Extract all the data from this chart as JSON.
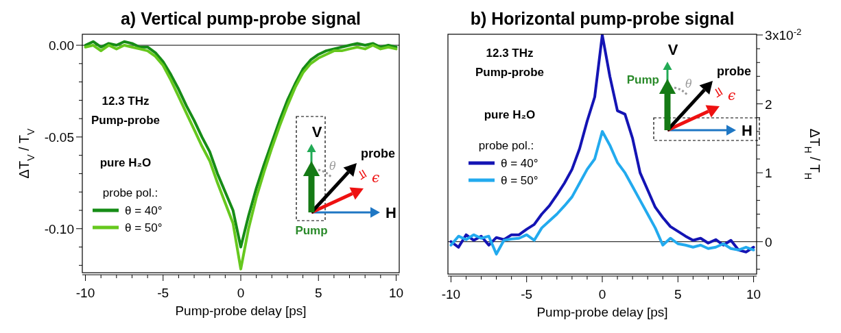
{
  "chart_data": [
    {
      "type": "line",
      "title": "a) Vertical pump-probe signal",
      "xlabel": "Pump-probe delay [ps]",
      "ylabel": "ΔT$_{V}$ / T$_{V}$",
      "xlim": [
        -10.2,
        10.2
      ],
      "ylim": [
        -0.124,
        0.006
      ],
      "xticks": [
        -10,
        {
          "value": -9,
          "label": null
        },
        {
          "value": -8,
          "label": null
        },
        {
          "value": -7,
          "label": null
        },
        {
          "value": -6,
          "label": null
        },
        -5,
        {
          "value": -4,
          "label": null
        },
        {
          "value": -3,
          "label": null
        },
        {
          "value": -2,
          "label": null
        },
        {
          "value": -1,
          "label": null
        },
        0,
        {
          "value": 1,
          "label": null
        },
        {
          "value": 2,
          "label": null
        },
        {
          "value": 3,
          "label": null
        },
        {
          "value": 4,
          "label": null
        },
        5,
        {
          "value": 6,
          "label": null
        },
        {
          "value": 7,
          "label": null
        },
        {
          "value": 8,
          "label": null
        },
        {
          "value": 9,
          "label": null
        },
        10
      ],
      "yticks": [
        {
          "value": -0.12,
          "label": null
        },
        {
          "value": -0.11,
          "label": null
        },
        {
          "value": -0.1,
          "label": "-0.10"
        },
        {
          "value": -0.09,
          "label": null
        },
        {
          "value": -0.08,
          "label": null
        },
        {
          "value": -0.07,
          "label": null
        },
        {
          "value": -0.06,
          "label": null
        },
        -0.05,
        {
          "value": -0.04,
          "label": null
        },
        {
          "value": -0.03,
          "label": null
        },
        {
          "value": -0.02,
          "label": null
        },
        {
          "value": -0.01,
          "label": null
        },
        {
          "value": 0,
          "label": "0.00"
        }
      ],
      "x": [
        -10,
        -9.5,
        -9,
        -8.5,
        -8,
        -7.5,
        -7,
        -6.5,
        -6,
        -5.5,
        -5,
        -4.5,
        -4,
        -3.5,
        -3,
        -2.5,
        -2,
        -1.5,
        -1,
        -0.5,
        0,
        0.5,
        1,
        1.5,
        2,
        2.5,
        3,
        3.5,
        4,
        4.5,
        5,
        5.5,
        6,
        6.5,
        7,
        7.5,
        8,
        8.5,
        9,
        9.5,
        10
      ],
      "series": [
        {
          "name": "θ = 40°",
          "color": "#168c16",
          "values": [
            0,
            0.002,
            -0.001,
            0.001,
            0,
            0.002,
            0.001,
            -0.001,
            -0.001,
            -0.004,
            -0.009,
            -0.016,
            -0.024,
            -0.033,
            -0.041,
            -0.05,
            -0.058,
            -0.07,
            -0.08,
            -0.09,
            -0.11,
            -0.093,
            -0.078,
            -0.065,
            -0.053,
            -0.041,
            -0.03,
            -0.021,
            -0.013,
            -0.008,
            -0.005,
            -0.003,
            -0.002,
            -0.001,
            0,
            0.001,
            0,
            0.001,
            -0.001,
            0,
            -0.001
          ]
        },
        {
          "name": "θ = 50°",
          "color": "#66c81e",
          "values": [
            -0.001,
            0,
            -0.003,
            0,
            -0.002,
            0,
            -0.001,
            -0.002,
            -0.003,
            -0.006,
            -0.011,
            -0.019,
            -0.028,
            -0.037,
            -0.046,
            -0.055,
            -0.063,
            -0.075,
            -0.086,
            -0.097,
            -0.122,
            -0.1,
            -0.083,
            -0.069,
            -0.056,
            -0.044,
            -0.033,
            -0.023,
            -0.015,
            -0.01,
            -0.007,
            -0.005,
            -0.003,
            -0.003,
            -0.002,
            -0.001,
            -0.002,
            0,
            -0.002,
            -0.001,
            -0.002
          ]
        }
      ],
      "legend": "bottom left",
      "legend_title": "probe pol.:",
      "ref_lines": [
        {
          "axis": "y",
          "value": 0,
          "color": "#000000"
        }
      ],
      "annotations": [
        "12.3 THz",
        "Pump-probe",
        "pure H₂O",
        "V",
        "probe",
        "θ",
        "ϵ",
        "H",
        "Pump"
      ]
    },
    {
      "type": "line",
      "title": "b) Horizontal pump-probe signal",
      "xlabel": "Pump-probe delay [ps]",
      "y2label": "ΔT$_{H}$ / T$_{H}$",
      "xlim": [
        -10.2,
        10.2
      ],
      "y2lim": [
        -0.47,
        3.01
      ],
      "xticks": [
        -10,
        {
          "value": -9,
          "label": null
        },
        {
          "value": -8,
          "label": null
        },
        {
          "value": -7,
          "label": null
        },
        {
          "value": -6,
          "label": null
        },
        -5,
        {
          "value": -4,
          "label": null
        },
        {
          "value": -3,
          "label": null
        },
        {
          "value": -2,
          "label": null
        },
        {
          "value": -1,
          "label": null
        },
        0,
        {
          "value": 1,
          "label": null
        },
        {
          "value": 2,
          "label": null
        },
        {
          "value": 3,
          "label": null
        },
        {
          "value": 4,
          "label": null
        },
        5,
        {
          "value": 6,
          "label": null
        },
        {
          "value": 7,
          "label": null
        },
        {
          "value": 8,
          "label": null
        },
        {
          "value": 9,
          "label": null
        },
        10
      ],
      "y2ticks": [
        {
          "value": -0.4,
          "label": null
        },
        {
          "value": -0.2,
          "label": null
        },
        0,
        {
          "value": 0.2,
          "label": null
        },
        {
          "value": 0.4,
          "label": null
        },
        {
          "value": 0.6,
          "label": null
        },
        {
          "value": 0.8,
          "label": null
        },
        1,
        {
          "value": 1.2,
          "label": null
        },
        {
          "value": 1.4,
          "label": null
        },
        {
          "value": 1.6,
          "label": null
        },
        {
          "value": 1.8,
          "label": null
        },
        2,
        {
          "value": 2.2,
          "label": null
        },
        {
          "value": 2.4,
          "label": null
        },
        {
          "value": 2.6,
          "label": null
        },
        {
          "value": 2.8,
          "label": null
        },
        3
      ],
      "x": [
        -10,
        -9.5,
        -9,
        -8.5,
        -8,
        -7.5,
        -7,
        -6.5,
        -6,
        -5.5,
        -5,
        -4.5,
        -4,
        -3.5,
        -3,
        -2.5,
        -2,
        -1.5,
        -1,
        -0.5,
        0,
        0.5,
        1,
        1.5,
        2,
        2.5,
        3,
        3.5,
        4,
        4.5,
        5,
        5.5,
        6,
        6.5,
        7,
        7.5,
        8,
        8.5,
        9,
        9.5,
        10
      ],
      "series": [
        {
          "name": "θ = 40°",
          "color": "#1414b4",
          "axis": "y2",
          "values": [
            0,
            -0.08,
            0.1,
            0.02,
            0.08,
            -0.05,
            0.06,
            0.03,
            0.1,
            0.1,
            0.18,
            0.25,
            0.4,
            0.52,
            0.68,
            0.85,
            1.05,
            1.35,
            1.75,
            2.1,
            3,
            2.4,
            1.9,
            1.85,
            1.5,
            1,
            0.75,
            0.5,
            0.35,
            0.22,
            0.15,
            0.08,
            0.02,
            0.05,
            -0.02,
            0.03,
            -0.05,
            0.02,
            -0.12,
            -0.15,
            -0.08
          ]
        },
        {
          "name": "θ = 50°",
          "color": "#22aaee",
          "axis": "y2",
          "values": [
            -0.05,
            0.08,
            0.03,
            0.1,
            0.05,
            0.08,
            -0.18,
            0.02,
            0.04,
            0.05,
            0.1,
            0.02,
            0.2,
            0.3,
            0.4,
            0.52,
            0.65,
            0.85,
            1.05,
            1.2,
            1.6,
            1.4,
            1.15,
            1,
            0.8,
            0.6,
            0.4,
            0.2,
            -0.05,
            0.05,
            -0.03,
            -0.05,
            -0.08,
            -0.05,
            -0.1,
            -0.08,
            -0.03,
            -0.1,
            -0.12,
            -0.08,
            -0.12
          ]
        }
      ],
      "legend": "left",
      "legend_title": "probe pol.:",
      "ref_lines": [
        {
          "axis": "y2",
          "value": 0,
          "color": "#000000"
        }
      ],
      "annotations": [
        "12.3 THz",
        "Pump-probe",
        "pure H₂O",
        "V",
        "probe",
        "θ",
        "ϵ",
        "H",
        "Pump",
        "x10$^{-2}$"
      ]
    }
  ]
}
